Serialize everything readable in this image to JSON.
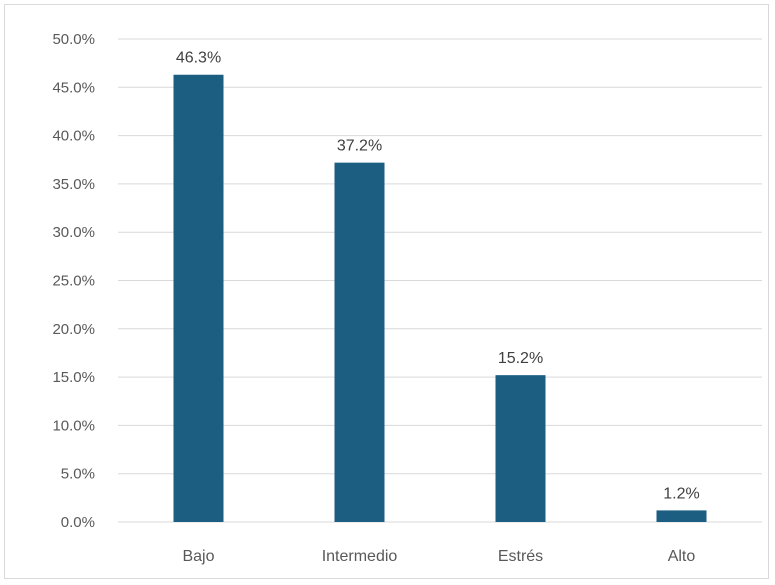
{
  "chart_data": {
    "type": "bar",
    "categories": [
      "Bajo",
      "Intermedio",
      "Estrés",
      "Alto"
    ],
    "values": [
      46.3,
      37.2,
      15.2,
      1.2
    ],
    "data_labels": [
      "46.3%",
      "37.2%",
      "15.2%",
      "1.2%"
    ],
    "ylim": [
      0,
      50
    ],
    "yticks": [
      0,
      5,
      10,
      15,
      20,
      25,
      30,
      35,
      40,
      45,
      50
    ],
    "ytick_labels": [
      "0.0%",
      "5.0%",
      "10.0%",
      "15.0%",
      "20.0%",
      "25.0%",
      "30.0%",
      "35.0%",
      "40.0%",
      "45.0%",
      "50.0%"
    ],
    "grid": true,
    "legend": "none",
    "bar_color": "#1b5e82",
    "grid_color": "#d9d9d9"
  }
}
